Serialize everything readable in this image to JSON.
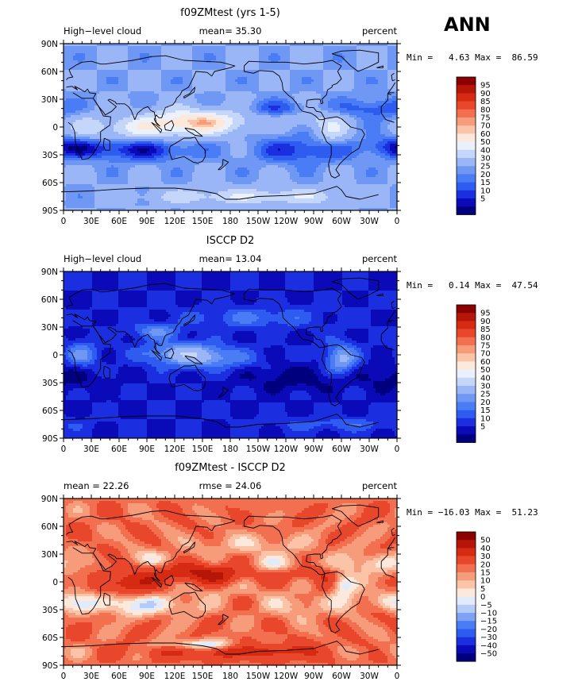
{
  "season": "ANN",
  "colors": {
    "abs_levels": [
      "#00007f",
      "#0a0ab8",
      "#1b2fe0",
      "#2f5cf0",
      "#4a7cf5",
      "#6f98f5",
      "#9bb6f7",
      "#c4d6fa",
      "#eaf0fc",
      "#fde9dc",
      "#fbc3a8",
      "#f79c7a",
      "#f27050",
      "#e9472b",
      "#d62a12",
      "#b51608",
      "#8c0000"
    ],
    "diff_levels": [
      "#00007f",
      "#0a0ab8",
      "#1b2fe0",
      "#2f5cf0",
      "#4a7cf5",
      "#7fa2f5",
      "#b5ccf9",
      "#e2ebfc",
      "#fde9dc",
      "#fbc3a8",
      "#f79c7a",
      "#f27050",
      "#e9472b",
      "#d62a12",
      "#b51608",
      "#8c0000"
    ],
    "coast": "#000000"
  },
  "panels": [
    {
      "title": "f09ZMtest (yrs 1-5)",
      "left_label": "High−level cloud",
      "center_label": "mean=  35.30",
      "right_label": "percent",
      "minmax": "Min =   4.63 Max =  86.59",
      "field": "model"
    },
    {
      "title": "ISCCP D2",
      "left_label": "High−level cloud",
      "center_label": "mean=  13.04",
      "right_label": "percent",
      "minmax": "Min =   0.14 Max =  47.54",
      "field": "obs"
    },
    {
      "title": "f09ZMtest - ISCCP D2",
      "left_label": "mean =   22.26",
      "center_label": "rmse =   24.06",
      "right_label": "percent",
      "minmax": "Min = −16.03 Max =  51.23",
      "field": "diff"
    }
  ],
  "chart_data": [
    {
      "type": "heatmap",
      "title": "f09ZMtest (yrs 1-5)",
      "variable": "High-level cloud",
      "units": "percent",
      "mean": 35.3,
      "min": 4.63,
      "max": 86.59,
      "x_ticks": [
        "0",
        "30E",
        "60E",
        "90E",
        "120E",
        "150E",
        "180",
        "150W",
        "120W",
        "90W",
        "60W",
        "30W",
        "0"
      ],
      "y_ticks": [
        "90S",
        "60S",
        "30S",
        "0",
        "30N",
        "60N",
        "90N"
      ],
      "xlim": [
        0,
        360
      ],
      "ylim": [
        -90,
        90
      ],
      "contour_levels": [
        5,
        10,
        15,
        20,
        25,
        30,
        40,
        50,
        60,
        70,
        75,
        80,
        85,
        90,
        95
      ]
    },
    {
      "type": "heatmap",
      "title": "ISCCP D2",
      "variable": "High-level cloud",
      "units": "percent",
      "mean": 13.04,
      "min": 0.14,
      "max": 47.54,
      "x_ticks": [
        "0",
        "30E",
        "60E",
        "90E",
        "120E",
        "150E",
        "180",
        "150W",
        "120W",
        "90W",
        "60W",
        "30W",
        "0"
      ],
      "y_ticks": [
        "90S",
        "60S",
        "30S",
        "0",
        "30N",
        "60N",
        "90N"
      ],
      "xlim": [
        0,
        360
      ],
      "ylim": [
        -90,
        90
      ],
      "contour_levels": [
        5,
        10,
        15,
        20,
        25,
        30,
        40,
        50,
        60,
        70,
        75,
        80,
        85,
        90,
        95
      ]
    },
    {
      "type": "heatmap",
      "title": "f09ZMtest - ISCCP D2",
      "units": "percent",
      "mean": 22.26,
      "rmse": 24.06,
      "min": -16.03,
      "max": 51.23,
      "x_ticks": [
        "0",
        "30E",
        "60E",
        "90E",
        "120E",
        "150E",
        "180",
        "150W",
        "120W",
        "90W",
        "60W",
        "30W",
        "0"
      ],
      "y_ticks": [
        "90S",
        "60S",
        "30S",
        "0",
        "30N",
        "60N",
        "90N"
      ],
      "xlim": [
        0,
        360
      ],
      "ylim": [
        -90,
        90
      ],
      "contour_levels": [
        -50,
        -40,
        -30,
        -20,
        -15,
        -10,
        -5,
        0,
        5,
        10,
        15,
        20,
        30,
        40,
        50
      ]
    }
  ]
}
